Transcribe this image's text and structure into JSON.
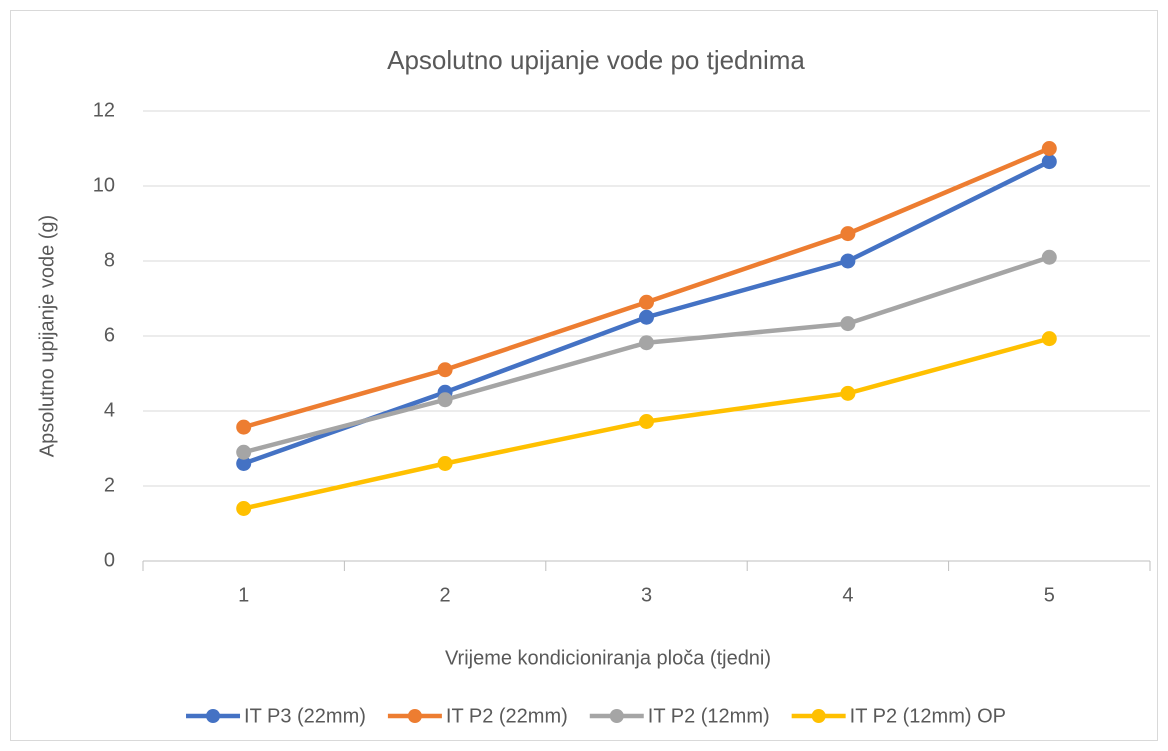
{
  "chart_data": {
    "type": "line",
    "title": "Apsolutno upijanje vode po tjednima",
    "x_label": "Vrijeme kondicioniranja ploča (tjedni)",
    "y_label": "Apsolutno upijanje vode (g)",
    "categories": [
      1,
      2,
      3,
      4,
      5
    ],
    "series": [
      {
        "name": "IT P3 (22mm)",
        "color": "#4472c4",
        "values": [
          2.6,
          4.5,
          6.5,
          8.0,
          10.65
        ]
      },
      {
        "name": "IT P2 (22mm)",
        "color": "#ed7d31",
        "values": [
          3.57,
          5.1,
          6.9,
          8.73,
          11.0
        ]
      },
      {
        "name": "IT P2 (12mm)",
        "color": "#a5a5a5",
        "values": [
          2.9,
          4.3,
          5.82,
          6.33,
          8.1
        ]
      },
      {
        "name": "IT P2 (12mm) OP",
        "color": "#ffc000",
        "values": [
          1.4,
          2.6,
          3.72,
          4.47,
          5.93
        ]
      }
    ],
    "ylim": [
      0,
      12
    ],
    "yticks": [
      0,
      2,
      4,
      6,
      8,
      10,
      12
    ],
    "grid": true,
    "legend": "bottom"
  }
}
